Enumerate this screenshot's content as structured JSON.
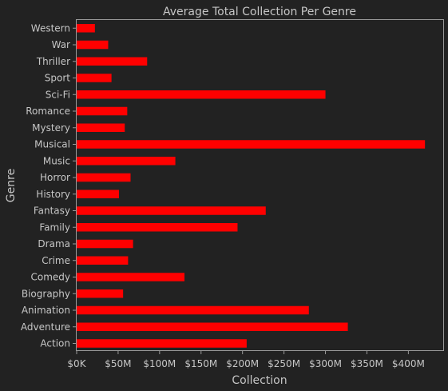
{
  "chart_data": {
    "type": "bar",
    "orientation": "horizontal",
    "title": "Average Total Collection Per Genre",
    "xlabel": "Collection",
    "ylabel": "Genre",
    "categories": [
      "Action",
      "Adventure",
      "Animation",
      "Biography",
      "Comedy",
      "Crime",
      "Drama",
      "Family",
      "Fantasy",
      "History",
      "Horror",
      "Music",
      "Musical",
      "Mystery",
      "Romance",
      "Sci-Fi",
      "Sport",
      "Thriller",
      "War",
      "Western"
    ],
    "values": [
      205,
      327,
      280,
      56,
      130,
      62,
      68,
      194,
      228,
      51,
      65,
      119,
      420,
      58,
      61,
      300,
      42,
      85,
      38,
      22
    ],
    "value_units": "millions",
    "xlim": [
      0,
      442
    ],
    "xticks": [
      0,
      50,
      100,
      150,
      200,
      250,
      300,
      350,
      400
    ],
    "xtick_labels": [
      "$0K",
      "$50M",
      "$100M",
      "$150M",
      "$200M",
      "$250M",
      "$300M",
      "$350M",
      "$400M"
    ],
    "bar_color": "#ff0000",
    "background_color": "#222222",
    "axes_color": "#999999",
    "text_color": "#c6c6c6",
    "grid": false,
    "legend": "none"
  }
}
